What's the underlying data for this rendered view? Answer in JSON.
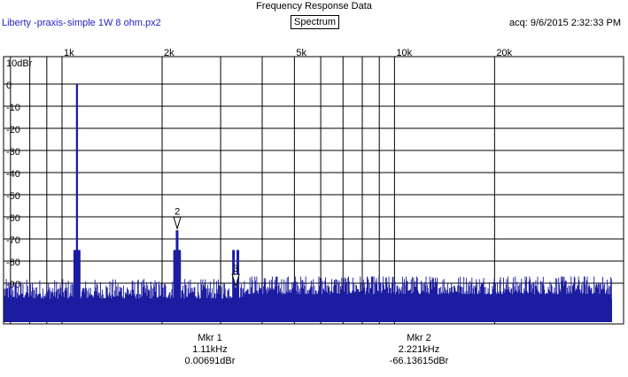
{
  "window": {
    "title": "Frequency Response Data",
    "app_label": "Liberty -praxis-",
    "file_name": "simple 1W 8 ohm.px2",
    "mode_button": "Spectrum",
    "acq_label": "acq: 9/6/2015 2:32:33 PM"
  },
  "markers": [
    {
      "name": "Mkr 1",
      "freq": "1.11kHz",
      "level": "0.00691dBr"
    },
    {
      "name": "Mkr 2",
      "freq": "2.221kHz",
      "level": "-66.13615dBr"
    }
  ],
  "colors": {
    "trace": "#1c1ca0",
    "grid": "#000000",
    "text_blue": "#1f1fbf"
  },
  "chart_data": {
    "type": "line",
    "x_scale": "log",
    "x_tick_labels": [
      "1k",
      "2k",
      "5k",
      "10k",
      "20k"
    ],
    "y_tick_labels": [
      "10dBr",
      "0",
      "-10",
      "-20",
      "-30",
      "-40",
      "-50",
      "-60",
      "-70",
      "-80",
      "-90"
    ],
    "ylim": [
      -100,
      10
    ],
    "grid": true,
    "peaks": [
      {
        "freq_hz": 1110,
        "level_dbr": 0.0
      },
      {
        "freq_hz": 2221,
        "level_dbr": -66.1
      },
      {
        "freq_hz": 3330,
        "level_dbr": -92
      }
    ],
    "noise_floor_dbr": [
      -97,
      -88
    ],
    "marker_labels": [
      "2",
      "3"
    ]
  }
}
